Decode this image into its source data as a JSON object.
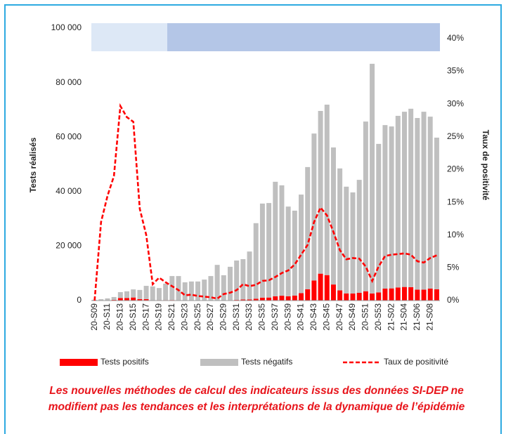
{
  "chart_data": {
    "type": "bar",
    "stacked": true,
    "categories": [
      "20-S09",
      null,
      "20-S11",
      null,
      "20-S13",
      null,
      "20-S15",
      null,
      "20-S17",
      null,
      "20-S19",
      null,
      "20-S21",
      null,
      "20-S23",
      null,
      "20-S25",
      null,
      "20-S27",
      null,
      "20-S29",
      null,
      "20-S31",
      null,
      "20-S33",
      null,
      "20-S35",
      null,
      "20-S37",
      null,
      "20-S39",
      null,
      "20-S41",
      null,
      "20-S43",
      null,
      "20-S45",
      null,
      "20-S47",
      null,
      "20-S49",
      null,
      "20-S51",
      null,
      "20-S53",
      null,
      "21-S02",
      null,
      "21-S04",
      null,
      "21-S06",
      null,
      "21-S08",
      null
    ],
    "series": [
      {
        "name": "Tests positifs",
        "color": "#ff0000",
        "values": [
          0,
          60,
          130,
          250,
          920,
          950,
          1120,
          550,
          540,
          130,
          160,
          170,
          200,
          140,
          50,
          60,
          50,
          50,
          50,
          40,
          90,
          150,
          240,
          380,
          400,
          680,
          1070,
          1110,
          1570,
          1780,
          1590,
          1820,
          2720,
          4170,
          7360,
          9880,
          9350,
          5900,
          3730,
          2630,
          2580,
          2840,
          3420,
          2610,
          2990,
          4380,
          4470,
          4810,
          4990,
          4930,
          4020,
          4020,
          4390,
          4130
        ]
      },
      {
        "name": "Tests négatifs",
        "color": "#bfbfbf",
        "values": [
          300,
          440,
          670,
          1050,
          2180,
          2450,
          2980,
          3350,
          4860,
          5070,
          4440,
          6030,
          8800,
          8860,
          6650,
          6940,
          6950,
          7650,
          8950,
          13060,
          9210,
          12250,
          14460,
          14820,
          17600,
          27720,
          34530,
          34690,
          42030,
          40520,
          32910,
          31180,
          36180,
          44830,
          53940,
          59720,
          62550,
          50300,
          44770,
          39170,
          37120,
          41460,
          62280,
          84290,
          54510,
          60020,
          59430,
          62990,
          64310,
          65470,
          62980,
          65280,
          63110,
          55670
        ]
      },
      {
        "name": "Taux de positivité",
        "type": "line",
        "axis": "y2",
        "color": "#ff0000",
        "values": [
          0,
          12,
          16,
          19,
          29.7,
          28,
          27.3,
          14,
          10,
          2.5,
          3.5,
          2.8,
          2.2,
          1.6,
          0.8,
          0.9,
          0.7,
          0.6,
          0.5,
          0.3,
          1.0,
          1.2,
          1.6,
          2.5,
          2.2,
          2.4,
          3.0,
          3.1,
          3.6,
          4.2,
          4.6,
          5.5,
          7.0,
          8.5,
          12,
          14.2,
          13,
          10.5,
          7.7,
          6.3,
          6.5,
          6.4,
          5.2,
          3.0,
          5.2,
          6.8,
          7.0,
          7.1,
          7.2,
          7.0,
          6.0,
          5.8,
          6.5,
          6.9
        ]
      }
    ],
    "ylabel": "Tests réalisés",
    "y2label": "Taux de positivité",
    "ylim": [
      0,
      100000
    ],
    "yticks": [
      0,
      {
        "value": 20000,
        "label": "20 000"
      },
      {
        "value": 40000,
        "label": "40 000"
      },
      {
        "value": 60000,
        "label": "60 000"
      },
      {
        "value": 80000,
        "label": "80 000"
      },
      {
        "value": 100000,
        "label": "100 000"
      }
    ],
    "y2lim": [
      0,
      41.6
    ],
    "y2ticks": [
      {
        "value": 0,
        "label": "0%"
      },
      {
        "value": 5,
        "label": "5%"
      },
      {
        "value": 10,
        "label": "10%"
      },
      {
        "value": 15,
        "label": "15%"
      },
      {
        "value": 20,
        "label": "20%"
      },
      {
        "value": 25,
        "label": "25%"
      },
      {
        "value": 30,
        "label": "30%"
      },
      {
        "value": 35,
        "label": "35%"
      },
      {
        "value": 40,
        "label": "40%"
      }
    ],
    "legend": "bottom",
    "annotations": [
      "Les nouvelles méthodes de calcul des indicateurs issus des données SI-DEP ne",
      "modifient pas les tendances et les interprétations de la dynamique de l’épidémie"
    ]
  }
}
